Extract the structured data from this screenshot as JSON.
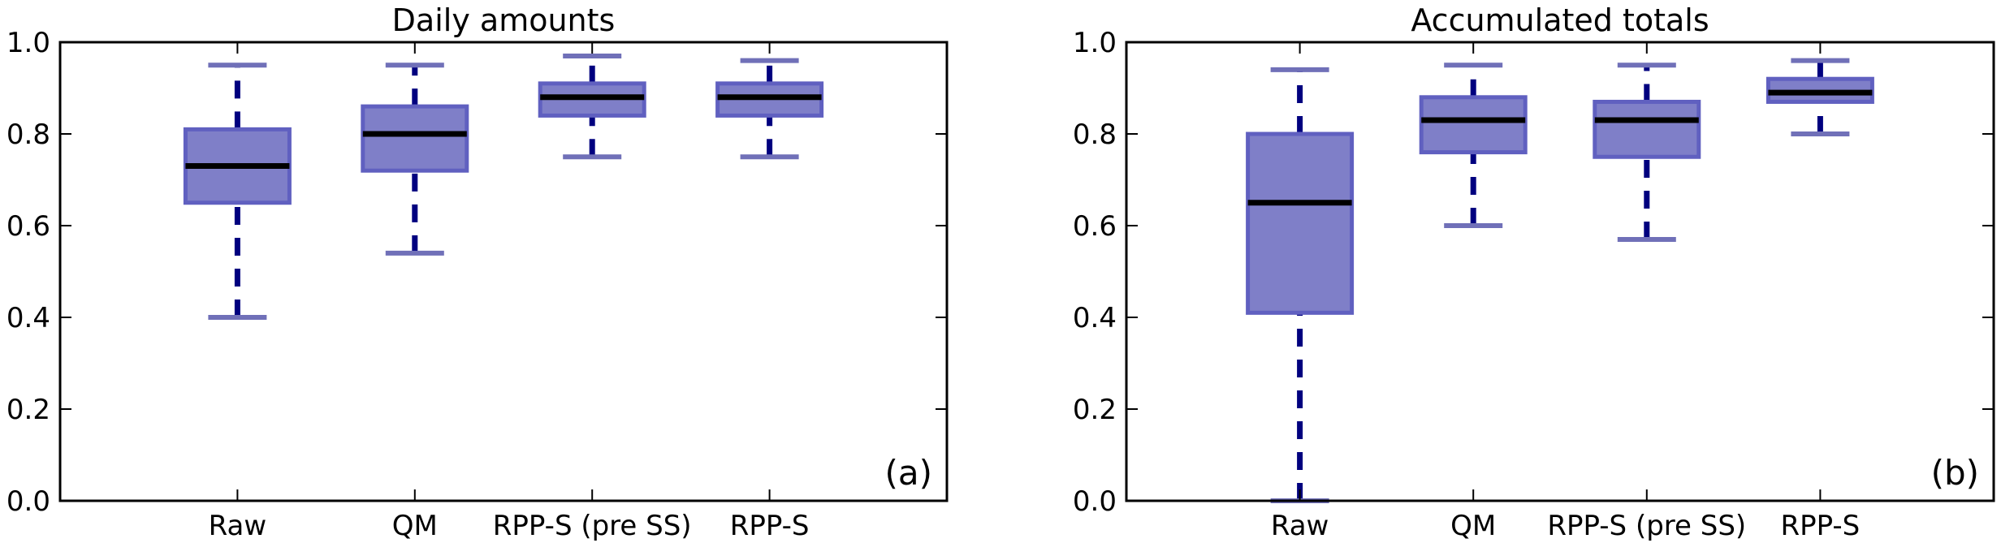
{
  "chart_data": [
    {
      "type": "box",
      "title": "Daily amounts",
      "panel_label": "(a)",
      "categories": [
        "Raw",
        "QM",
        "RPP-S (pre SS)",
        "RPP-S"
      ],
      "ylim": [
        0.0,
        1.0
      ],
      "yticks": [
        "0.0",
        "0.2",
        "0.4",
        "0.6",
        "0.8",
        "1.0"
      ],
      "boxes": [
        {
          "whisker_low": 0.4,
          "q1": 0.65,
          "median": 0.73,
          "q3": 0.81,
          "whisker_high": 0.95
        },
        {
          "whisker_low": 0.54,
          "q1": 0.72,
          "median": 0.8,
          "q3": 0.86,
          "whisker_high": 0.95
        },
        {
          "whisker_low": 0.75,
          "q1": 0.84,
          "median": 0.88,
          "q3": 0.91,
          "whisker_high": 0.97
        },
        {
          "whisker_low": 0.75,
          "q1": 0.84,
          "median": 0.88,
          "q3": 0.91,
          "whisker_high": 0.96
        }
      ]
    },
    {
      "type": "box",
      "title": "Accumulated totals",
      "panel_label": "(b)",
      "categories": [
        "Raw",
        "QM",
        "RPP-S (pre SS)",
        "RPP-S"
      ],
      "ylim": [
        0.0,
        1.0
      ],
      "yticks": [
        "0.0",
        "0.2",
        "0.4",
        "0.6",
        "0.8",
        "1.0"
      ],
      "boxes": [
        {
          "whisker_low": 0.0,
          "q1": 0.41,
          "median": 0.65,
          "q3": 0.8,
          "whisker_high": 0.94
        },
        {
          "whisker_low": 0.6,
          "q1": 0.76,
          "median": 0.83,
          "q3": 0.88,
          "whisker_high": 0.95
        },
        {
          "whisker_low": 0.57,
          "q1": 0.75,
          "median": 0.83,
          "q3": 0.87,
          "whisker_high": 0.95
        },
        {
          "whisker_low": 0.8,
          "q1": 0.87,
          "median": 0.89,
          "q3": 0.92,
          "whisker_high": 0.96
        }
      ]
    }
  ],
  "colors": {
    "box_fill": "#7f7fc8",
    "box_edge": "#6060c0",
    "whisker": "#00007f",
    "cap": "#7070b8",
    "median": "#000000"
  }
}
